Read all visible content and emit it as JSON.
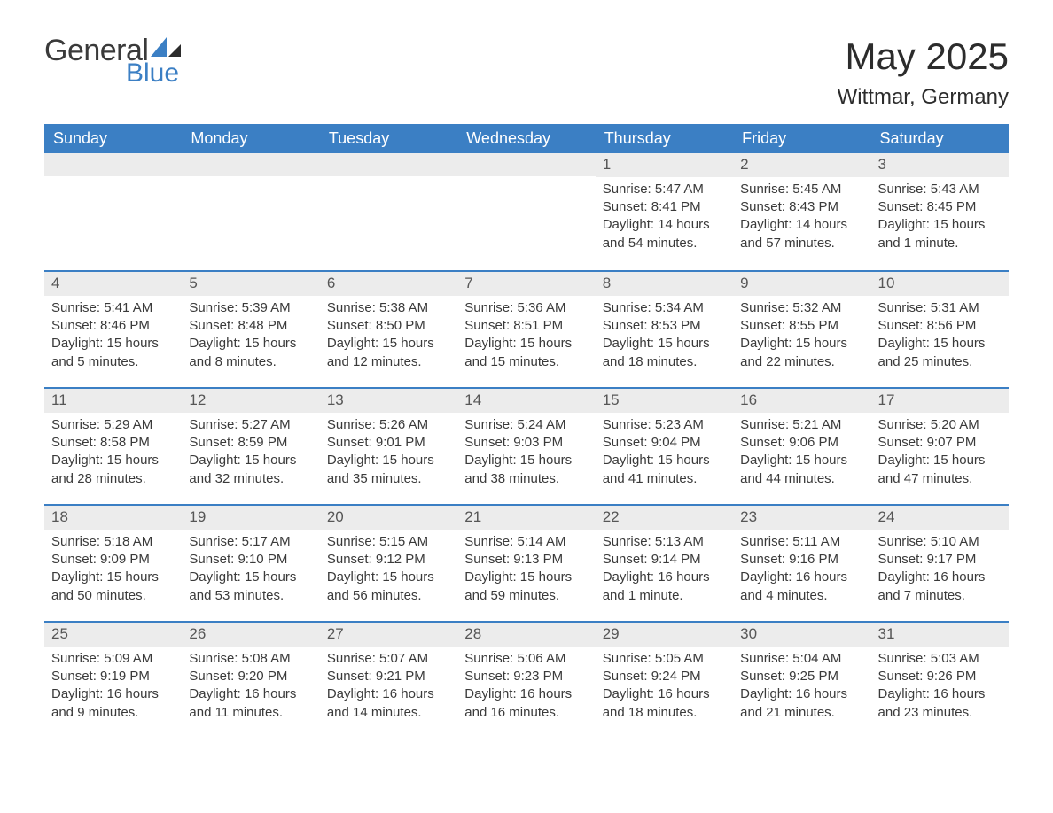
{
  "logo": {
    "general": "General",
    "blue": "Blue"
  },
  "title": "May 2025",
  "location": "Wittmar, Germany",
  "colors": {
    "header_bg": "#3b7fc4",
    "header_text": "#ffffff",
    "daynum_bg": "#ececec",
    "daynum_text": "#565656",
    "body_text": "#3a3a3a",
    "row_border": "#3b7fc4",
    "logo_blue": "#3b7fc4"
  },
  "weekdays": [
    "Sunday",
    "Monday",
    "Tuesday",
    "Wednesday",
    "Thursday",
    "Friday",
    "Saturday"
  ],
  "weeks": [
    [
      null,
      null,
      null,
      null,
      {
        "n": "1",
        "sr": "Sunrise: 5:47 AM",
        "ss": "Sunset: 8:41 PM",
        "d1": "Daylight: 14 hours",
        "d2": "and 54 minutes."
      },
      {
        "n": "2",
        "sr": "Sunrise: 5:45 AM",
        "ss": "Sunset: 8:43 PM",
        "d1": "Daylight: 14 hours",
        "d2": "and 57 minutes."
      },
      {
        "n": "3",
        "sr": "Sunrise: 5:43 AM",
        "ss": "Sunset: 8:45 PM",
        "d1": "Daylight: 15 hours",
        "d2": "and 1 minute."
      }
    ],
    [
      {
        "n": "4",
        "sr": "Sunrise: 5:41 AM",
        "ss": "Sunset: 8:46 PM",
        "d1": "Daylight: 15 hours",
        "d2": "and 5 minutes."
      },
      {
        "n": "5",
        "sr": "Sunrise: 5:39 AM",
        "ss": "Sunset: 8:48 PM",
        "d1": "Daylight: 15 hours",
        "d2": "and 8 minutes."
      },
      {
        "n": "6",
        "sr": "Sunrise: 5:38 AM",
        "ss": "Sunset: 8:50 PM",
        "d1": "Daylight: 15 hours",
        "d2": "and 12 minutes."
      },
      {
        "n": "7",
        "sr": "Sunrise: 5:36 AM",
        "ss": "Sunset: 8:51 PM",
        "d1": "Daylight: 15 hours",
        "d2": "and 15 minutes."
      },
      {
        "n": "8",
        "sr": "Sunrise: 5:34 AM",
        "ss": "Sunset: 8:53 PM",
        "d1": "Daylight: 15 hours",
        "d2": "and 18 minutes."
      },
      {
        "n": "9",
        "sr": "Sunrise: 5:32 AM",
        "ss": "Sunset: 8:55 PM",
        "d1": "Daylight: 15 hours",
        "d2": "and 22 minutes."
      },
      {
        "n": "10",
        "sr": "Sunrise: 5:31 AM",
        "ss": "Sunset: 8:56 PM",
        "d1": "Daylight: 15 hours",
        "d2": "and 25 minutes."
      }
    ],
    [
      {
        "n": "11",
        "sr": "Sunrise: 5:29 AM",
        "ss": "Sunset: 8:58 PM",
        "d1": "Daylight: 15 hours",
        "d2": "and 28 minutes."
      },
      {
        "n": "12",
        "sr": "Sunrise: 5:27 AM",
        "ss": "Sunset: 8:59 PM",
        "d1": "Daylight: 15 hours",
        "d2": "and 32 minutes."
      },
      {
        "n": "13",
        "sr": "Sunrise: 5:26 AM",
        "ss": "Sunset: 9:01 PM",
        "d1": "Daylight: 15 hours",
        "d2": "and 35 minutes."
      },
      {
        "n": "14",
        "sr": "Sunrise: 5:24 AM",
        "ss": "Sunset: 9:03 PM",
        "d1": "Daylight: 15 hours",
        "d2": "and 38 minutes."
      },
      {
        "n": "15",
        "sr": "Sunrise: 5:23 AM",
        "ss": "Sunset: 9:04 PM",
        "d1": "Daylight: 15 hours",
        "d2": "and 41 minutes."
      },
      {
        "n": "16",
        "sr": "Sunrise: 5:21 AM",
        "ss": "Sunset: 9:06 PM",
        "d1": "Daylight: 15 hours",
        "d2": "and 44 minutes."
      },
      {
        "n": "17",
        "sr": "Sunrise: 5:20 AM",
        "ss": "Sunset: 9:07 PM",
        "d1": "Daylight: 15 hours",
        "d2": "and 47 minutes."
      }
    ],
    [
      {
        "n": "18",
        "sr": "Sunrise: 5:18 AM",
        "ss": "Sunset: 9:09 PM",
        "d1": "Daylight: 15 hours",
        "d2": "and 50 minutes."
      },
      {
        "n": "19",
        "sr": "Sunrise: 5:17 AM",
        "ss": "Sunset: 9:10 PM",
        "d1": "Daylight: 15 hours",
        "d2": "and 53 minutes."
      },
      {
        "n": "20",
        "sr": "Sunrise: 5:15 AM",
        "ss": "Sunset: 9:12 PM",
        "d1": "Daylight: 15 hours",
        "d2": "and 56 minutes."
      },
      {
        "n": "21",
        "sr": "Sunrise: 5:14 AM",
        "ss": "Sunset: 9:13 PM",
        "d1": "Daylight: 15 hours",
        "d2": "and 59 minutes."
      },
      {
        "n": "22",
        "sr": "Sunrise: 5:13 AM",
        "ss": "Sunset: 9:14 PM",
        "d1": "Daylight: 16 hours",
        "d2": "and 1 minute."
      },
      {
        "n": "23",
        "sr": "Sunrise: 5:11 AM",
        "ss": "Sunset: 9:16 PM",
        "d1": "Daylight: 16 hours",
        "d2": "and 4 minutes."
      },
      {
        "n": "24",
        "sr": "Sunrise: 5:10 AM",
        "ss": "Sunset: 9:17 PM",
        "d1": "Daylight: 16 hours",
        "d2": "and 7 minutes."
      }
    ],
    [
      {
        "n": "25",
        "sr": "Sunrise: 5:09 AM",
        "ss": "Sunset: 9:19 PM",
        "d1": "Daylight: 16 hours",
        "d2": "and 9 minutes."
      },
      {
        "n": "26",
        "sr": "Sunrise: 5:08 AM",
        "ss": "Sunset: 9:20 PM",
        "d1": "Daylight: 16 hours",
        "d2": "and 11 minutes."
      },
      {
        "n": "27",
        "sr": "Sunrise: 5:07 AM",
        "ss": "Sunset: 9:21 PM",
        "d1": "Daylight: 16 hours",
        "d2": "and 14 minutes."
      },
      {
        "n": "28",
        "sr": "Sunrise: 5:06 AM",
        "ss": "Sunset: 9:23 PM",
        "d1": "Daylight: 16 hours",
        "d2": "and 16 minutes."
      },
      {
        "n": "29",
        "sr": "Sunrise: 5:05 AM",
        "ss": "Sunset: 9:24 PM",
        "d1": "Daylight: 16 hours",
        "d2": "and 18 minutes."
      },
      {
        "n": "30",
        "sr": "Sunrise: 5:04 AM",
        "ss": "Sunset: 9:25 PM",
        "d1": "Daylight: 16 hours",
        "d2": "and 21 minutes."
      },
      {
        "n": "31",
        "sr": "Sunrise: 5:03 AM",
        "ss": "Sunset: 9:26 PM",
        "d1": "Daylight: 16 hours",
        "d2": "and 23 minutes."
      }
    ]
  ]
}
